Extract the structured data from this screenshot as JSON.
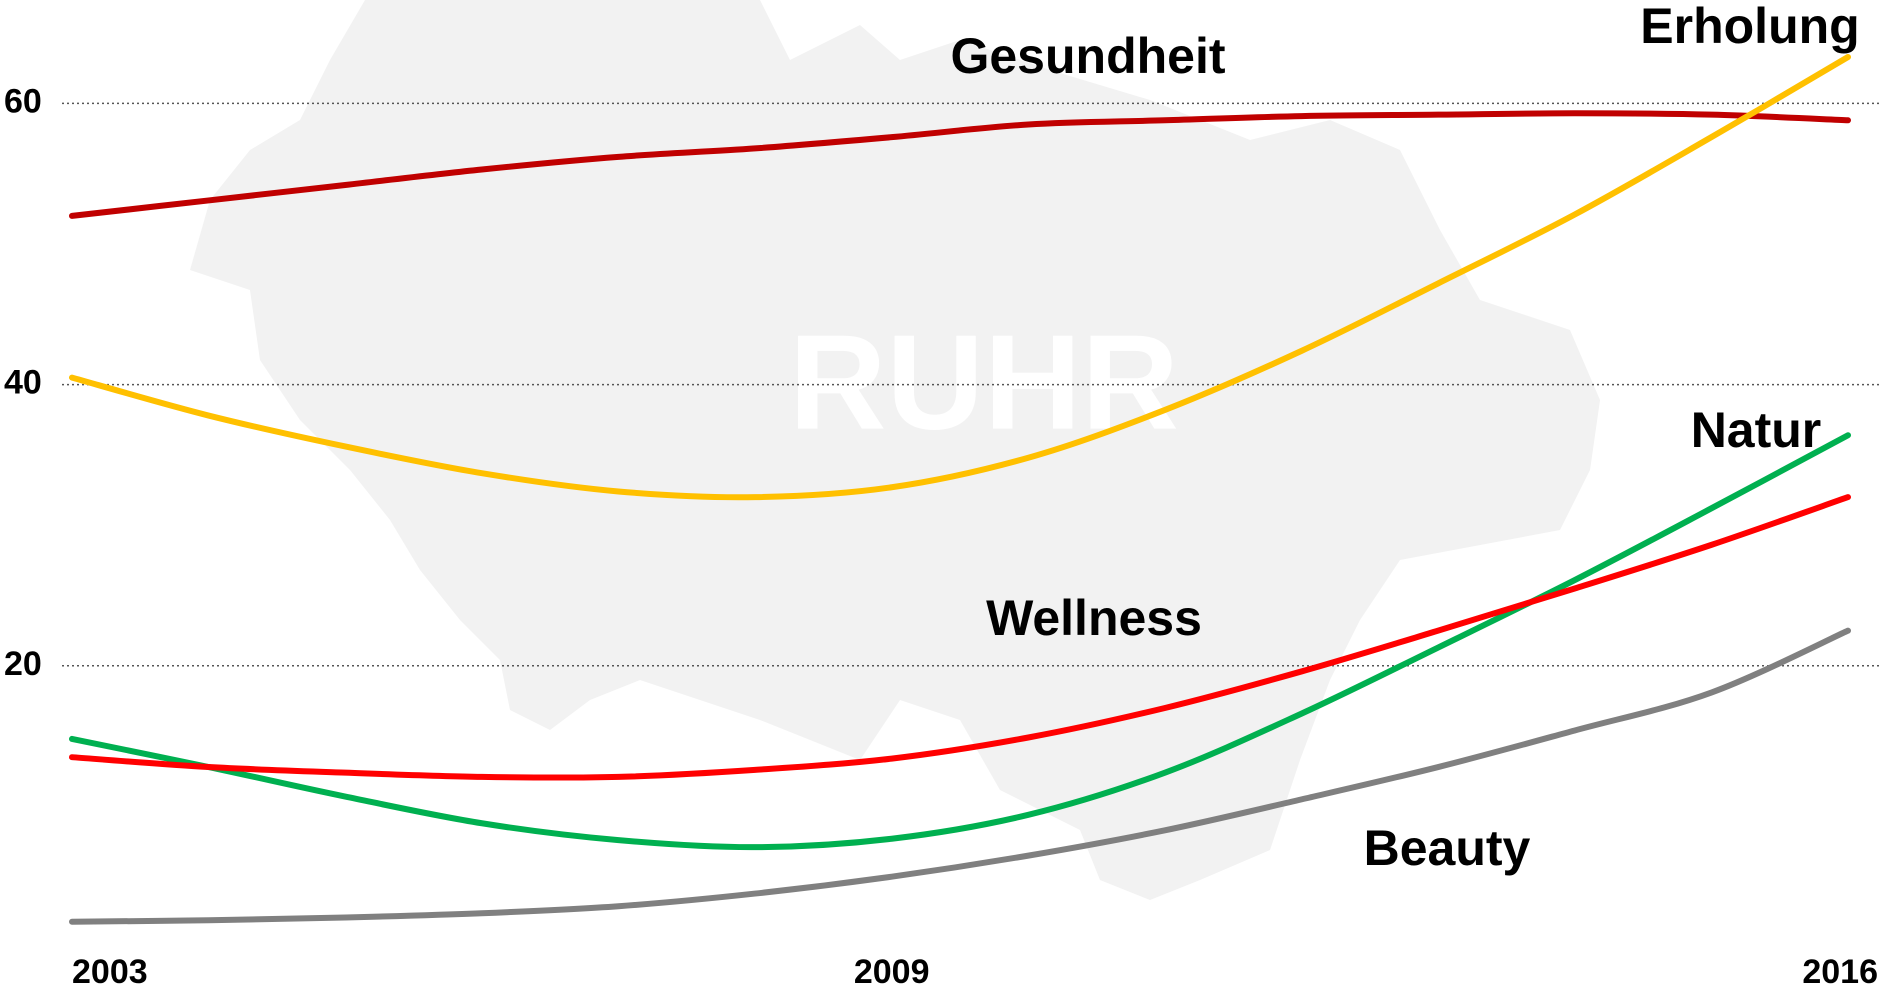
{
  "chart_data": {
    "type": "line",
    "watermark": "RUHR",
    "x": [
      2003,
      2004,
      2005,
      2006,
      2007,
      2008,
      2009,
      2010,
      2011,
      2012,
      2013,
      2014,
      2015,
      2016
    ],
    "xlim": [
      2003,
      2016
    ],
    "xticks": [
      2003,
      2009,
      2016
    ],
    "ylim": [
      0,
      67
    ],
    "yticks": [
      20,
      40,
      60
    ],
    "grid": true,
    "series": [
      {
        "name": "Gesundheit",
        "color": "#c00000",
        "values": [
          52.0,
          53.1,
          54.2,
          55.3,
          56.2,
          56.8,
          57.6,
          58.5,
          58.8,
          59.1,
          59.2,
          59.3,
          59.2,
          58.8
        ]
      },
      {
        "name": "Erholung",
        "color": "#ffc000",
        "values": [
          40.5,
          37.8,
          35.6,
          33.7,
          32.4,
          32.0,
          32.7,
          34.8,
          38.2,
          42.4,
          47.2,
          52.1,
          57.6,
          63.3
        ]
      },
      {
        "name": "Natur",
        "color": "#00b050",
        "values": [
          14.8,
          12.8,
          10.7,
          8.8,
          7.6,
          7.1,
          7.7,
          9.4,
          12.4,
          16.6,
          21.3,
          26.1,
          31.2,
          36.4
        ]
      },
      {
        "name": "Wellness",
        "color": "#ff0000",
        "values": [
          13.5,
          12.8,
          12.4,
          12.1,
          12.1,
          12.6,
          13.4,
          14.9,
          17.0,
          19.6,
          22.5,
          25.5,
          28.6,
          32.0
        ]
      },
      {
        "name": "Beauty",
        "color": "#808080",
        "values": [
          1.8,
          1.9,
          2.1,
          2.4,
          2.9,
          3.8,
          5.0,
          6.5,
          8.3,
          10.5,
          12.8,
          15.4,
          18.1,
          22.5
        ]
      }
    ]
  }
}
